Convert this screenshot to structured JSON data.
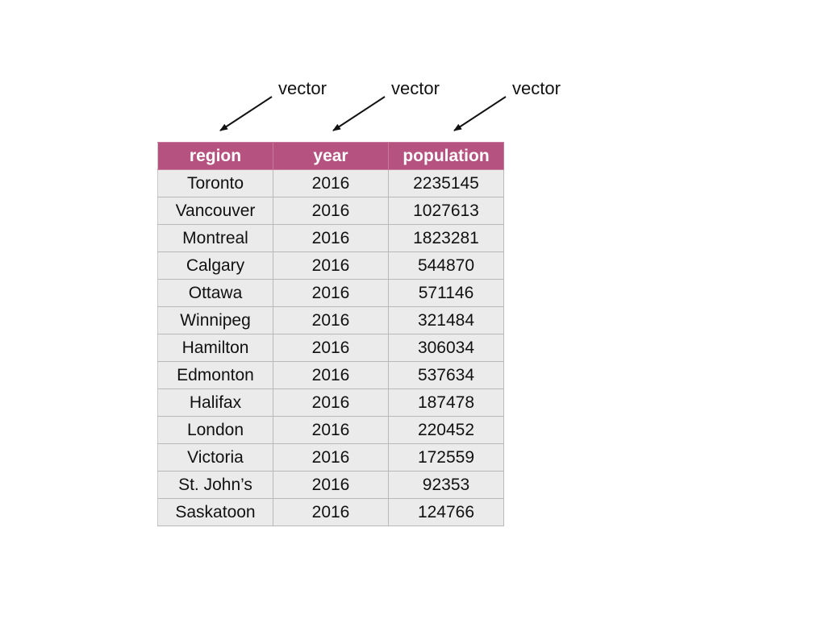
{
  "annotations": {
    "labels": [
      "vector",
      "vector",
      "vector"
    ]
  },
  "table": {
    "columns": [
      "region",
      "year",
      "population"
    ],
    "rows": [
      [
        "Toronto",
        "2016",
        "2235145"
      ],
      [
        "Vancouver",
        "2016",
        "1027613"
      ],
      [
        "Montreal",
        "2016",
        "1823281"
      ],
      [
        "Calgary",
        "2016",
        "544870"
      ],
      [
        "Ottawa",
        "2016",
        "571146"
      ],
      [
        "Winnipeg",
        "2016",
        "321484"
      ],
      [
        "Hamilton",
        "2016",
        "306034"
      ],
      [
        "Edmonton",
        "2016",
        "537634"
      ],
      [
        "Halifax",
        "2016",
        "187478"
      ],
      [
        "London",
        "2016",
        "220452"
      ],
      [
        "Victoria",
        "2016",
        "172559"
      ],
      [
        "St. John’s",
        "2016",
        "92353"
      ],
      [
        "Saskatoon",
        "2016",
        "124766"
      ]
    ]
  },
  "colors": {
    "header_bg": "#b5527f",
    "header_text": "#ffffff",
    "cell_bg": "#ebebeb",
    "grid": "#b9b9b9"
  }
}
